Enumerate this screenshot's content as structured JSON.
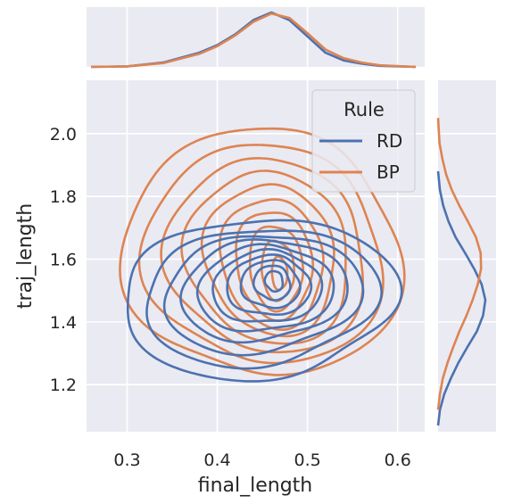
{
  "chart_data": {
    "type": "jointplot-kde",
    "xlabel": "final_length",
    "ylabel": "traj_length",
    "xlim": [
      0.255,
      0.63
    ],
    "ylim": [
      1.05,
      2.17
    ],
    "xticks": [
      0.3,
      0.4,
      0.5,
      0.6
    ],
    "yticks": [
      1.2,
      1.4,
      1.6,
      1.8,
      2.0
    ],
    "grid": true,
    "legend": {
      "title": "Rule",
      "placement": "top-right"
    },
    "series": [
      {
        "name": "RD",
        "color": "#4c72b0",
        "x_marginal": [
          [
            0.26,
            0.0
          ],
          [
            0.3,
            0.01
          ],
          [
            0.34,
            0.08
          ],
          [
            0.38,
            0.26
          ],
          [
            0.4,
            0.4
          ],
          [
            0.42,
            0.6
          ],
          [
            0.44,
            0.86
          ],
          [
            0.46,
            1.0
          ],
          [
            0.48,
            0.86
          ],
          [
            0.5,
            0.56
          ],
          [
            0.52,
            0.26
          ],
          [
            0.54,
            0.12
          ],
          [
            0.56,
            0.06
          ],
          [
            0.58,
            0.02
          ],
          [
            0.62,
            0.0
          ]
        ],
        "y_marginal": [
          [
            1.07,
            0.0
          ],
          [
            1.12,
            0.04
          ],
          [
            1.17,
            0.13
          ],
          [
            1.22,
            0.27
          ],
          [
            1.27,
            0.43
          ],
          [
            1.32,
            0.62
          ],
          [
            1.37,
            0.82
          ],
          [
            1.42,
            0.95
          ],
          [
            1.47,
            1.0
          ],
          [
            1.52,
            0.92
          ],
          [
            1.57,
            0.76
          ],
          [
            1.62,
            0.57
          ],
          [
            1.67,
            0.37
          ],
          [
            1.72,
            0.22
          ],
          [
            1.77,
            0.11
          ],
          [
            1.82,
            0.04
          ],
          [
            1.88,
            0.0
          ]
        ],
        "contours": [
          {
            "cx": 0.445,
            "cy": 1.475,
            "rx": 0.148,
            "ry": 0.26,
            "rot": 0
          },
          {
            "cx": 0.447,
            "cy": 1.48,
            "rx": 0.125,
            "ry": 0.225,
            "rot": 0.05
          },
          {
            "cx": 0.449,
            "cy": 1.49,
            "rx": 0.105,
            "ry": 0.195,
            "rot": 0.08
          },
          {
            "cx": 0.451,
            "cy": 1.5,
            "rx": 0.088,
            "ry": 0.168,
            "rot": 0.1
          },
          {
            "cx": 0.453,
            "cy": 1.505,
            "rx": 0.072,
            "ry": 0.143,
            "rot": 0.1
          },
          {
            "cx": 0.455,
            "cy": 1.51,
            "rx": 0.058,
            "ry": 0.12,
            "rot": 0.12
          },
          {
            "cx": 0.457,
            "cy": 1.515,
            "rx": 0.045,
            "ry": 0.098,
            "rot": 0.12
          },
          {
            "cx": 0.459,
            "cy": 1.52,
            "rx": 0.032,
            "ry": 0.077,
            "rot": 0.12
          },
          {
            "cx": 0.461,
            "cy": 1.525,
            "rx": 0.02,
            "ry": 0.055,
            "rot": 0.12
          },
          {
            "cx": 0.463,
            "cy": 1.53,
            "rx": 0.01,
            "ry": 0.032,
            "rot": 0.12
          }
        ]
      },
      {
        "name": "BP",
        "color": "#dd8452",
        "x_marginal": [
          [
            0.26,
            0.0
          ],
          [
            0.3,
            0.01
          ],
          [
            0.34,
            0.07
          ],
          [
            0.38,
            0.24
          ],
          [
            0.4,
            0.38
          ],
          [
            0.42,
            0.58
          ],
          [
            0.44,
            0.83
          ],
          [
            0.46,
            0.98
          ],
          [
            0.48,
            0.9
          ],
          [
            0.5,
            0.62
          ],
          [
            0.52,
            0.32
          ],
          [
            0.54,
            0.16
          ],
          [
            0.56,
            0.08
          ],
          [
            0.58,
            0.03
          ],
          [
            0.62,
            0.0
          ]
        ],
        "y_marginal": [
          [
            1.12,
            0.0
          ],
          [
            1.17,
            0.04
          ],
          [
            1.22,
            0.1
          ],
          [
            1.27,
            0.2
          ],
          [
            1.32,
            0.32
          ],
          [
            1.37,
            0.45
          ],
          [
            1.42,
            0.6
          ],
          [
            1.47,
            0.73
          ],
          [
            1.52,
            0.84
          ],
          [
            1.57,
            0.91
          ],
          [
            1.62,
            0.9
          ],
          [
            1.67,
            0.8
          ],
          [
            1.72,
            0.63
          ],
          [
            1.77,
            0.45
          ],
          [
            1.82,
            0.29
          ],
          [
            1.87,
            0.17
          ],
          [
            1.92,
            0.09
          ],
          [
            1.97,
            0.03
          ],
          [
            2.05,
            0.0
          ]
        ],
        "contours": [
          {
            "cx": 0.45,
            "cy": 1.62,
            "rx": 0.148,
            "ry": 0.41,
            "rot": 0
          },
          {
            "cx": 0.452,
            "cy": 1.615,
            "rx": 0.128,
            "ry": 0.36,
            "rot": 0.04
          },
          {
            "cx": 0.455,
            "cy": 1.61,
            "rx": 0.108,
            "ry": 0.315,
            "rot": 0.06
          },
          {
            "cx": 0.457,
            "cy": 1.605,
            "rx": 0.09,
            "ry": 0.275,
            "rot": 0.08
          },
          {
            "cx": 0.459,
            "cy": 1.6,
            "rx": 0.073,
            "ry": 0.236,
            "rot": 0.08
          },
          {
            "cx": 0.461,
            "cy": 1.59,
            "rx": 0.058,
            "ry": 0.2,
            "rot": 0.1
          },
          {
            "cx": 0.463,
            "cy": 1.585,
            "rx": 0.044,
            "ry": 0.165,
            "rot": 0.1
          },
          {
            "cx": 0.465,
            "cy": 1.575,
            "rx": 0.031,
            "ry": 0.128,
            "rot": 0.1
          },
          {
            "cx": 0.467,
            "cy": 1.565,
            "rx": 0.019,
            "ry": 0.09,
            "rot": 0.1
          },
          {
            "cx": 0.469,
            "cy": 1.555,
            "rx": 0.009,
            "ry": 0.05,
            "rot": 0.1
          }
        ]
      }
    ]
  }
}
